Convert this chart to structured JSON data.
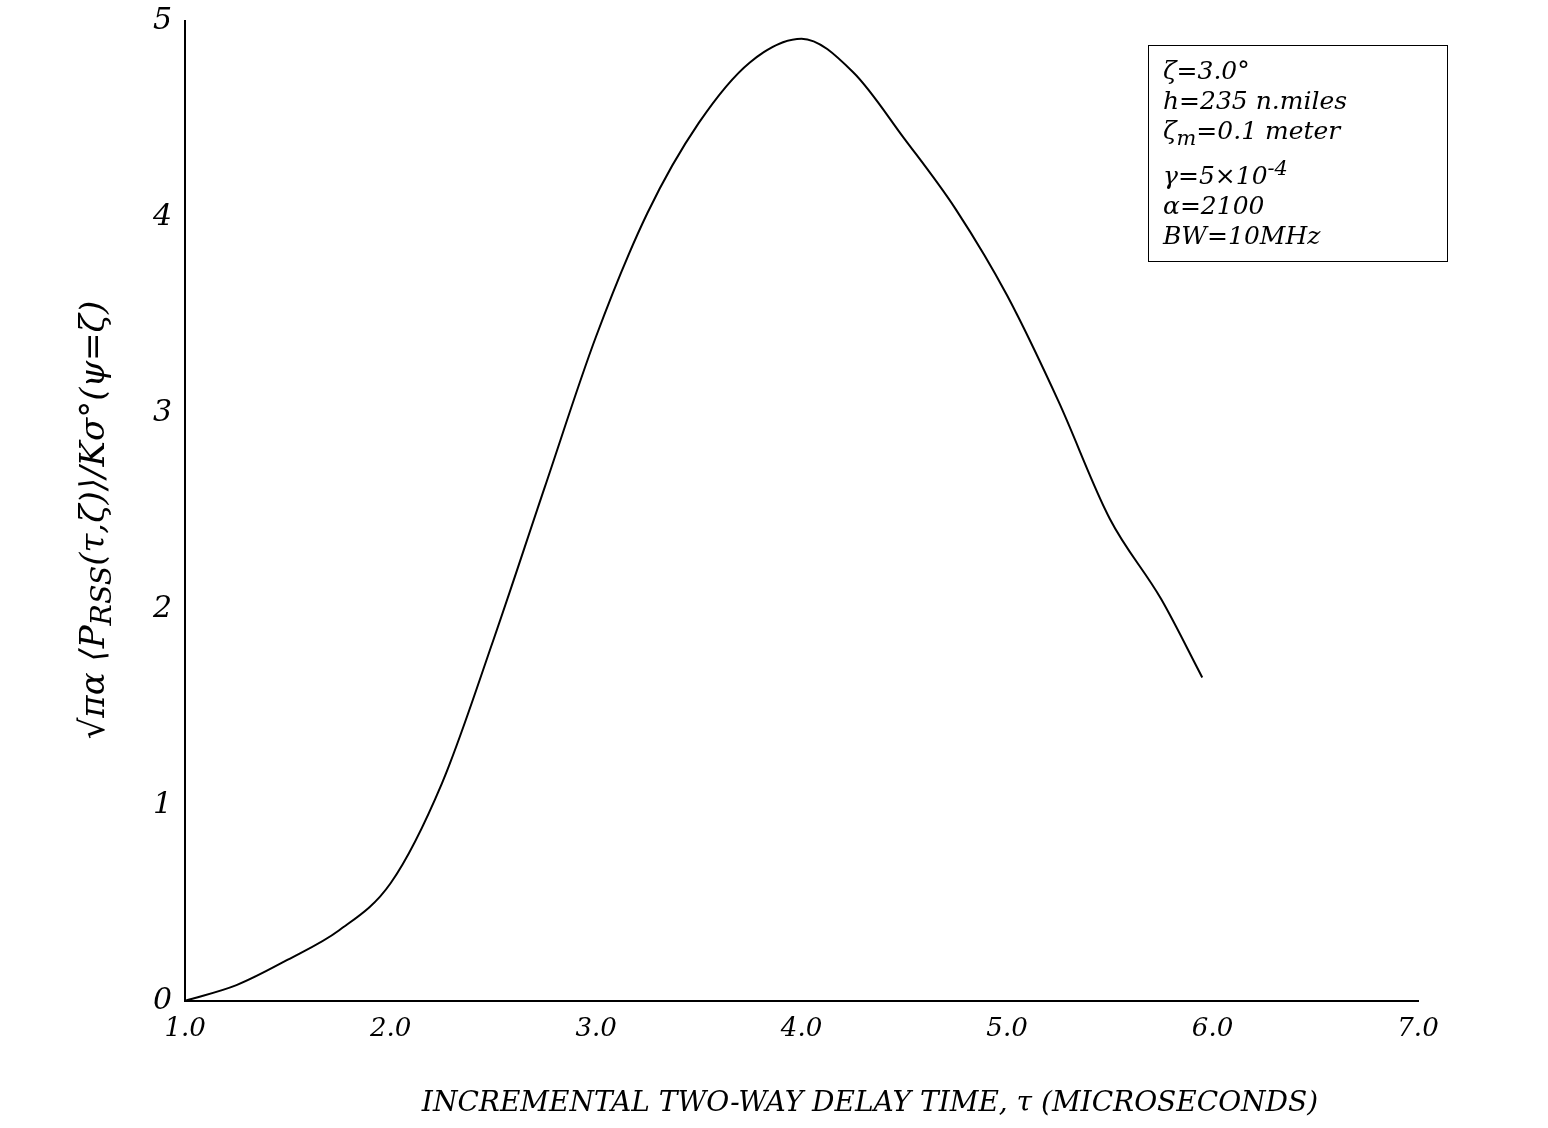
{
  "chart_data": {
    "type": "line",
    "xlabel": "INCREMENTAL TWO-WAY DELAY TIME, τ (MICROSECONDS)",
    "ylabel": "√πα ⟨P$_{RSS}$(τ,ζ)⟩/Kσ°(ψ=ζ)",
    "x": [
      1.0,
      1.25,
      1.5,
      1.75,
      2.0,
      2.25,
      2.5,
      2.75,
      3.0,
      3.25,
      3.5,
      3.75,
      4.0,
      4.25,
      4.5,
      4.75,
      5.0,
      5.25,
      5.5,
      5.75,
      5.95
    ],
    "values": [
      0,
      0.08,
      0.21,
      0.36,
      0.6,
      1.11,
      1.84,
      2.62,
      3.39,
      4.02,
      4.48,
      4.79,
      4.91,
      4.74,
      4.4,
      4.04,
      3.6,
      3.06,
      2.46,
      2.05,
      1.65
    ],
    "color": "#000000",
    "xlim": [
      1,
      7
    ],
    "xticks": [
      {
        "value": 1,
        "label": "1.0"
      },
      {
        "value": 2,
        "label": "2.0"
      },
      {
        "value": 3,
        "label": "3.0"
      },
      {
        "value": 4,
        "label": "4.0"
      },
      {
        "value": 5,
        "label": "5.0"
      },
      {
        "value": 6,
        "label": "6.0"
      },
      {
        "value": 7,
        "label": "7.0"
      }
    ],
    "ylim": [
      0,
      5
    ],
    "yticks": [
      0,
      1,
      2,
      3,
      4,
      5
    ],
    "annotations": [
      "ζ=3.0°",
      "h=235 n.miles",
      "ζ$_{m}$=0.1 meter",
      "γ=5×10$^{-4}$",
      "α=2100",
      "BW=10MHz"
    ]
  }
}
